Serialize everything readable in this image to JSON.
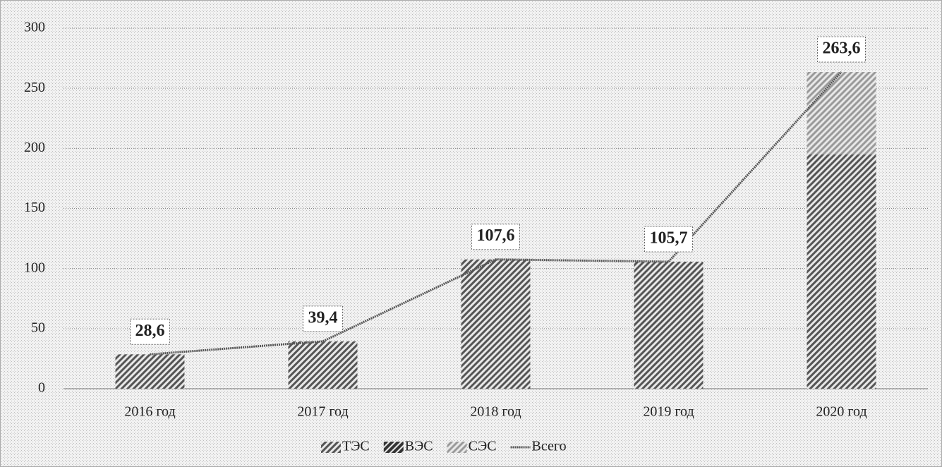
{
  "chart_data": {
    "type": "bar",
    "stacked": true,
    "categories": [
      "2016 год",
      "2017 год",
      "2018 год",
      "2019 год",
      "2020 год"
    ],
    "series": [
      {
        "name": "ТЭС",
        "color": "#555555",
        "values": [
          28.6,
          39.4,
          107.6,
          105.7,
          195
        ]
      },
      {
        "name": "ВЭС",
        "color": "#333333",
        "values": [
          0,
          0,
          0,
          0,
          0
        ]
      },
      {
        "name": "СЭС",
        "color": "#9a9a9a",
        "values": [
          0,
          0,
          0,
          0,
          68.6
        ]
      },
      {
        "name": "Всего",
        "type": "line",
        "color": "#555555",
        "values": [
          28.6,
          39.4,
          107.6,
          105.7,
          263.6
        ],
        "value_labels": [
          "28,6",
          "39,4",
          "107,6",
          "105,7",
          "263,6"
        ]
      }
    ],
    "ylim": [
      0,
      300
    ],
    "yticks": [
      0,
      50,
      100,
      150,
      200,
      250,
      300
    ],
    "grid": true,
    "legend": "bottom"
  }
}
